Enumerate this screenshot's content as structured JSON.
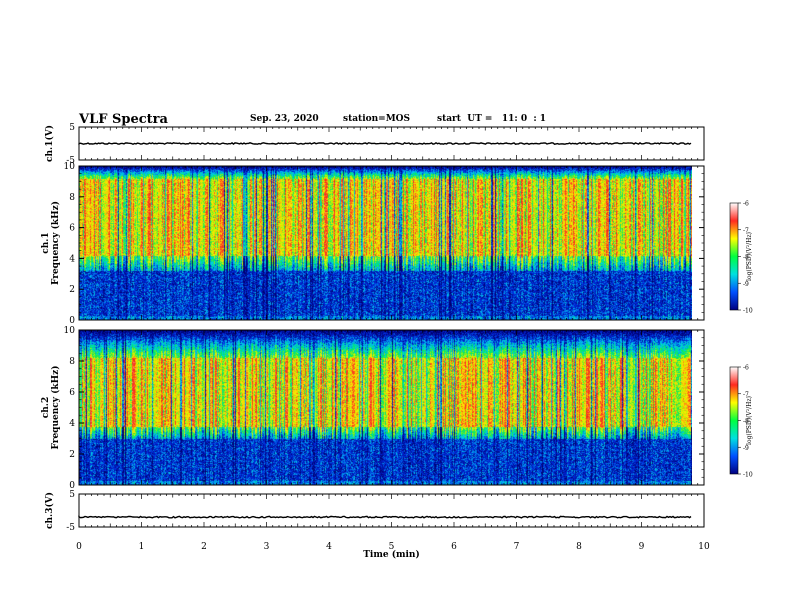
{
  "header": {
    "title": "VLF Spectra",
    "date": "Sep. 23, 2020",
    "station": "station=MOS",
    "start": "start  UT =   11: 0  : 1"
  },
  "colorbar": {
    "label": "log(PSD)(V²/Hz)",
    "ticks": [
      "-6",
      "-7",
      "-8",
      "-9",
      "-10"
    ],
    "colors": [
      "#ffffff",
      "#ff2a20",
      "#ffff00",
      "#00ff40",
      "#00e0e0",
      "#0050ff",
      "#000080"
    ]
  },
  "chart_data": [
    {
      "type": "line",
      "panel": "ch.1",
      "ylabel": "ch.1(V)",
      "yticks": [
        "5",
        "-5"
      ],
      "ylim": [
        -5,
        5
      ],
      "xlim": [
        0,
        10
      ],
      "series": [
        {
          "level": 0.0
        }
      ]
    },
    {
      "type": "heatmap",
      "panel": "ch.1 spectrogram",
      "ylabel": "ch.1\nFrequency (kHz)",
      "yticks": [
        "0",
        "2",
        "4",
        "6",
        "8",
        "10"
      ],
      "ylim": [
        0,
        10
      ],
      "xlim": [
        0,
        9.8
      ],
      "z_range": [
        -10,
        -6
      ],
      "strong_band_khz": [
        4.2,
        9.2
      ],
      "weak_band_khz": [
        0.3,
        3.2
      ]
    },
    {
      "type": "heatmap",
      "panel": "ch.2 spectrogram",
      "ylabel": "ch.2\nFrequency (kHz)",
      "yticks": [
        "0",
        "2",
        "4",
        "6",
        "8",
        "10"
      ],
      "ylim": [
        0,
        10
      ],
      "xlim": [
        0,
        9.8
      ],
      "z_range": [
        -10,
        -6
      ],
      "strong_band_khz": [
        3.8,
        8.2
      ],
      "weak_band_khz": [
        0.3,
        3.0
      ]
    },
    {
      "type": "line",
      "panel": "ch.3",
      "ylabel": "ch.3(V)",
      "yticks": [
        "5",
        "-5"
      ],
      "ylim": [
        -5,
        5
      ],
      "xlim": [
        0,
        10
      ],
      "series": [
        {
          "level": -2.0
        }
      ]
    }
  ],
  "xaxis": {
    "label": "Time (min)",
    "ticks": [
      "0",
      "1",
      "2",
      "3",
      "4",
      "5",
      "6",
      "7",
      "8",
      "9",
      "10"
    ],
    "range": [
      0,
      10
    ]
  }
}
